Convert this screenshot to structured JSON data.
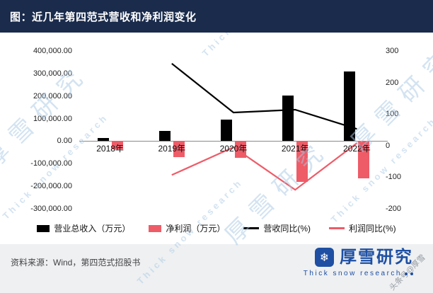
{
  "header": {
    "title": "图：近几年第四范式营收和净利润变化"
  },
  "chart_data": {
    "type": "combo_bar_line",
    "categories": [
      "2018年",
      "2019年",
      "2020年",
      "2021年",
      "2022年"
    ],
    "left_axis": {
      "unit": "万元",
      "min": -300000,
      "max": 400000,
      "tick_labels": [
        "400,000.00",
        "300,000.00",
        "200,000.00",
        "100,000.00",
        "0.00",
        "-100,000.00",
        "-200,000.00",
        "-300,000.00"
      ],
      "tick_values": [
        400000,
        300000,
        200000,
        100000,
        0,
        -100000,
        -200000,
        -300000
      ]
    },
    "right_axis": {
      "unit": "%",
      "min": -200,
      "max": 300,
      "tick_labels": [
        "300",
        "200",
        "100",
        "0",
        "-100",
        "-200"
      ],
      "tick_values": [
        300,
        200,
        100,
        0,
        -100,
        -200
      ]
    },
    "series": [
      {
        "name": "营业总收入（万元）",
        "type": "bar",
        "axis": "left",
        "color": "#000000",
        "values": [
          12800,
          46000,
          94200,
          201800,
          308300
        ]
      },
      {
        "name": "净利润（万元）",
        "type": "bar",
        "axis": "left",
        "color": "#ee5c68",
        "values": [
          -37200,
          -71800,
          -75000,
          -180200,
          -165300
        ]
      },
      {
        "name": "营收同比(%)",
        "type": "line",
        "axis": "right",
        "color": "#000000",
        "values": [
          null,
          260,
          105,
          114,
          53
        ]
      },
      {
        "name": "利润同比(%)",
        "type": "line",
        "axis": "right",
        "color": "#ee5c68",
        "values": [
          null,
          -93,
          -5,
          -140,
          8
        ]
      }
    ],
    "grid": false,
    "legend_position": "bottom"
  },
  "footer": {
    "source": "资料来源：Wind，第四范式招股书"
  },
  "logo": {
    "name": "厚雪研究",
    "subtitle": "Thick snow research"
  },
  "watermarks": {
    "cn": "厚雪研究",
    "en": "Thick snow research",
    "toutiao": "头条号@厚雪"
  }
}
